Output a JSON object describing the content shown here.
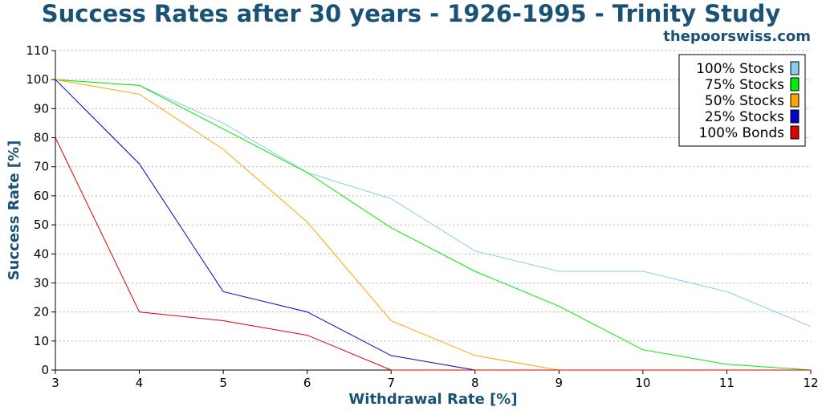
{
  "title": "Success Rates after 30 years - 1926-1995 - Trinity Study",
  "subtitle": "thepoorswiss.com",
  "chart_data": {
    "type": "line",
    "xlabel": "Withdrawal Rate [%]",
    "ylabel": "Success Rate [%]",
    "xlim": [
      3,
      12
    ],
    "ylim": [
      0,
      110
    ],
    "x_ticks": [
      3,
      4,
      5,
      6,
      7,
      8,
      9,
      10,
      11,
      12
    ],
    "y_ticks": [
      0,
      10,
      20,
      30,
      40,
      50,
      60,
      70,
      80,
      90,
      100,
      110
    ],
    "grid": "horizontal dotted",
    "legend_position": "top-right",
    "series": [
      {
        "name": "100% Stocks",
        "color": "#87ceeb",
        "x": [
          3,
          4,
          5,
          6,
          7,
          8,
          9,
          10,
          11,
          12
        ],
        "values": [
          100,
          98,
          85,
          68,
          59,
          41,
          34,
          34,
          27,
          15
        ]
      },
      {
        "name": "75% Stocks",
        "color": "#00ee00",
        "x": [
          3,
          4,
          5,
          6,
          7,
          8,
          9,
          10,
          11,
          12
        ],
        "values": [
          100,
          98,
          83,
          68,
          49,
          34,
          22,
          7,
          2,
          0
        ]
      },
      {
        "name": "50% Stocks",
        "color": "#ffa500",
        "x": [
          3,
          4,
          5,
          6,
          7,
          8,
          9,
          10,
          11,
          12
        ],
        "values": [
          100,
          95,
          76,
          51,
          17,
          5,
          0,
          0,
          0,
          0
        ]
      },
      {
        "name": "25% Stocks",
        "color": "#0000cd",
        "x": [
          3,
          4,
          5,
          6,
          7,
          8
        ],
        "values": [
          100,
          71,
          27,
          20,
          5,
          0
        ]
      },
      {
        "name": "100% Bonds",
        "color": "#dd0000",
        "x": [
          3,
          4,
          5,
          6,
          7,
          8,
          9,
          10,
          11,
          12
        ],
        "values": [
          80,
          20,
          17,
          12,
          0,
          0,
          0,
          0,
          0,
          0
        ]
      }
    ]
  }
}
